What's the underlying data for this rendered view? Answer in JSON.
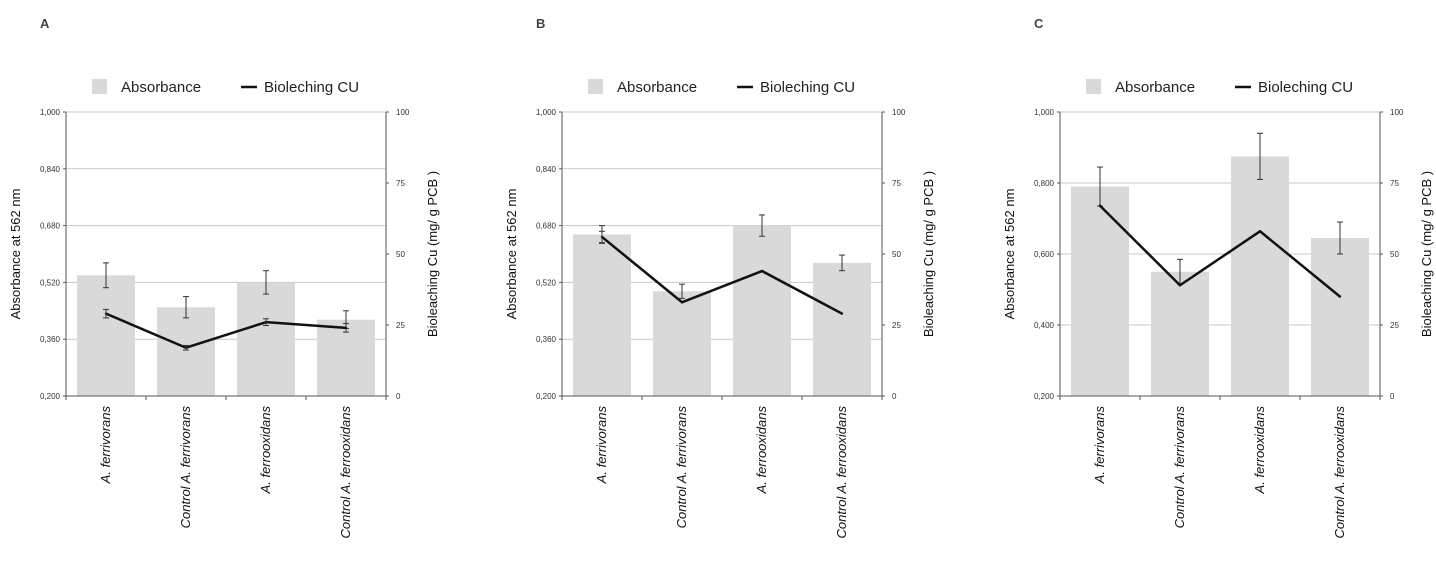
{
  "legend": {
    "absorbance": "Absorbance",
    "bioleaching": "Bioleching CU"
  },
  "colors": {
    "bar": "#d9d9d9",
    "line": "#111111",
    "grid": "#c8c8c8",
    "axis": "#555555"
  },
  "chart_data": [
    {
      "type": "bar",
      "panel_label": "A",
      "categories": [
        "A. ferrivorans",
        "Control A. ferrivorans",
        "A. ferrooxidans",
        "Control A. ferrooxidans"
      ],
      "ylabel": "Absorbance at 562 nm",
      "y2label": "Bioleaching Cu (mg/ g PCB )",
      "ylim": [
        0.2,
        1.0
      ],
      "yticks": [
        "0,200",
        "0,360",
        "0,520",
        "0,680",
        "0,840",
        "1,000"
      ],
      "y2lim": [
        0,
        100
      ],
      "y2ticks": [
        "0",
        "25",
        "50",
        "75",
        "100"
      ],
      "grid": true,
      "legend_position": "top",
      "series": [
        {
          "name": "Absorbance",
          "type": "bar",
          "axis": "left",
          "values": [
            0.54,
            0.45,
            0.52,
            0.415
          ],
          "errors": [
            0.035,
            0.03,
            0.033,
            0.025
          ]
        },
        {
          "name": "Bioleching CU",
          "type": "line",
          "axis": "right",
          "values": [
            29,
            17,
            26,
            24
          ],
          "errors": [
            1.5,
            0.8,
            1.2,
            1.5
          ]
        }
      ]
    },
    {
      "type": "bar",
      "panel_label": "B",
      "categories": [
        "A. ferrivorans",
        "Control A. ferrivorans",
        "A. ferrooxidans",
        "Control A. ferrooxidans"
      ],
      "ylabel": "Absorbance at 562 nm",
      "y2label": "Bioleaching Cu (mg/ g PCB )",
      "ylim": [
        0.2,
        1.0
      ],
      "yticks": [
        "0,200",
        "0,360",
        "0,520",
        "0,680",
        "0,840",
        "1,000"
      ],
      "y2lim": [
        0,
        100
      ],
      "y2ticks": [
        "0",
        "25",
        "50",
        "75",
        "100"
      ],
      "grid": true,
      "legend_position": "top",
      "series": [
        {
          "name": "Absorbance",
          "type": "bar",
          "axis": "left",
          "values": [
            0.655,
            0.495,
            0.68,
            0.575
          ],
          "errors": [
            0.025,
            0.02,
            0.03,
            0.022
          ]
        },
        {
          "name": "Bioleching CU",
          "type": "line",
          "axis": "right",
          "values": [
            56,
            33,
            44,
            29
          ],
          "errors": [
            2.0,
            0,
            0,
            0
          ]
        }
      ]
    },
    {
      "type": "bar",
      "panel_label": "C",
      "categories": [
        "A. ferrivorans",
        "Control A. ferrivorans",
        "A. ferrooxidans",
        "Control A. ferrooxidans"
      ],
      "ylabel": "Absorbance at 562 nm",
      "y2label": "Bioleaching Cu (mg/ g PCB )",
      "ylim": [
        0.2,
        1.0
      ],
      "yticks": [
        "0,200",
        "0,400",
        "0,600",
        "0,800",
        "1,000"
      ],
      "y2lim": [
        0,
        100
      ],
      "y2ticks": [
        "0",
        "25",
        "50",
        "75",
        "100"
      ],
      "grid": true,
      "legend_position": "top",
      "series": [
        {
          "name": "Absorbance",
          "type": "bar",
          "axis": "left",
          "values": [
            0.79,
            0.55,
            0.875,
            0.645
          ],
          "errors": [
            0.055,
            0.035,
            0.065,
            0.045
          ]
        },
        {
          "name": "Bioleching CU",
          "type": "line",
          "axis": "right",
          "values": [
            67,
            39,
            58,
            35
          ],
          "errors": [
            0,
            0,
            0,
            0
          ]
        }
      ]
    }
  ]
}
